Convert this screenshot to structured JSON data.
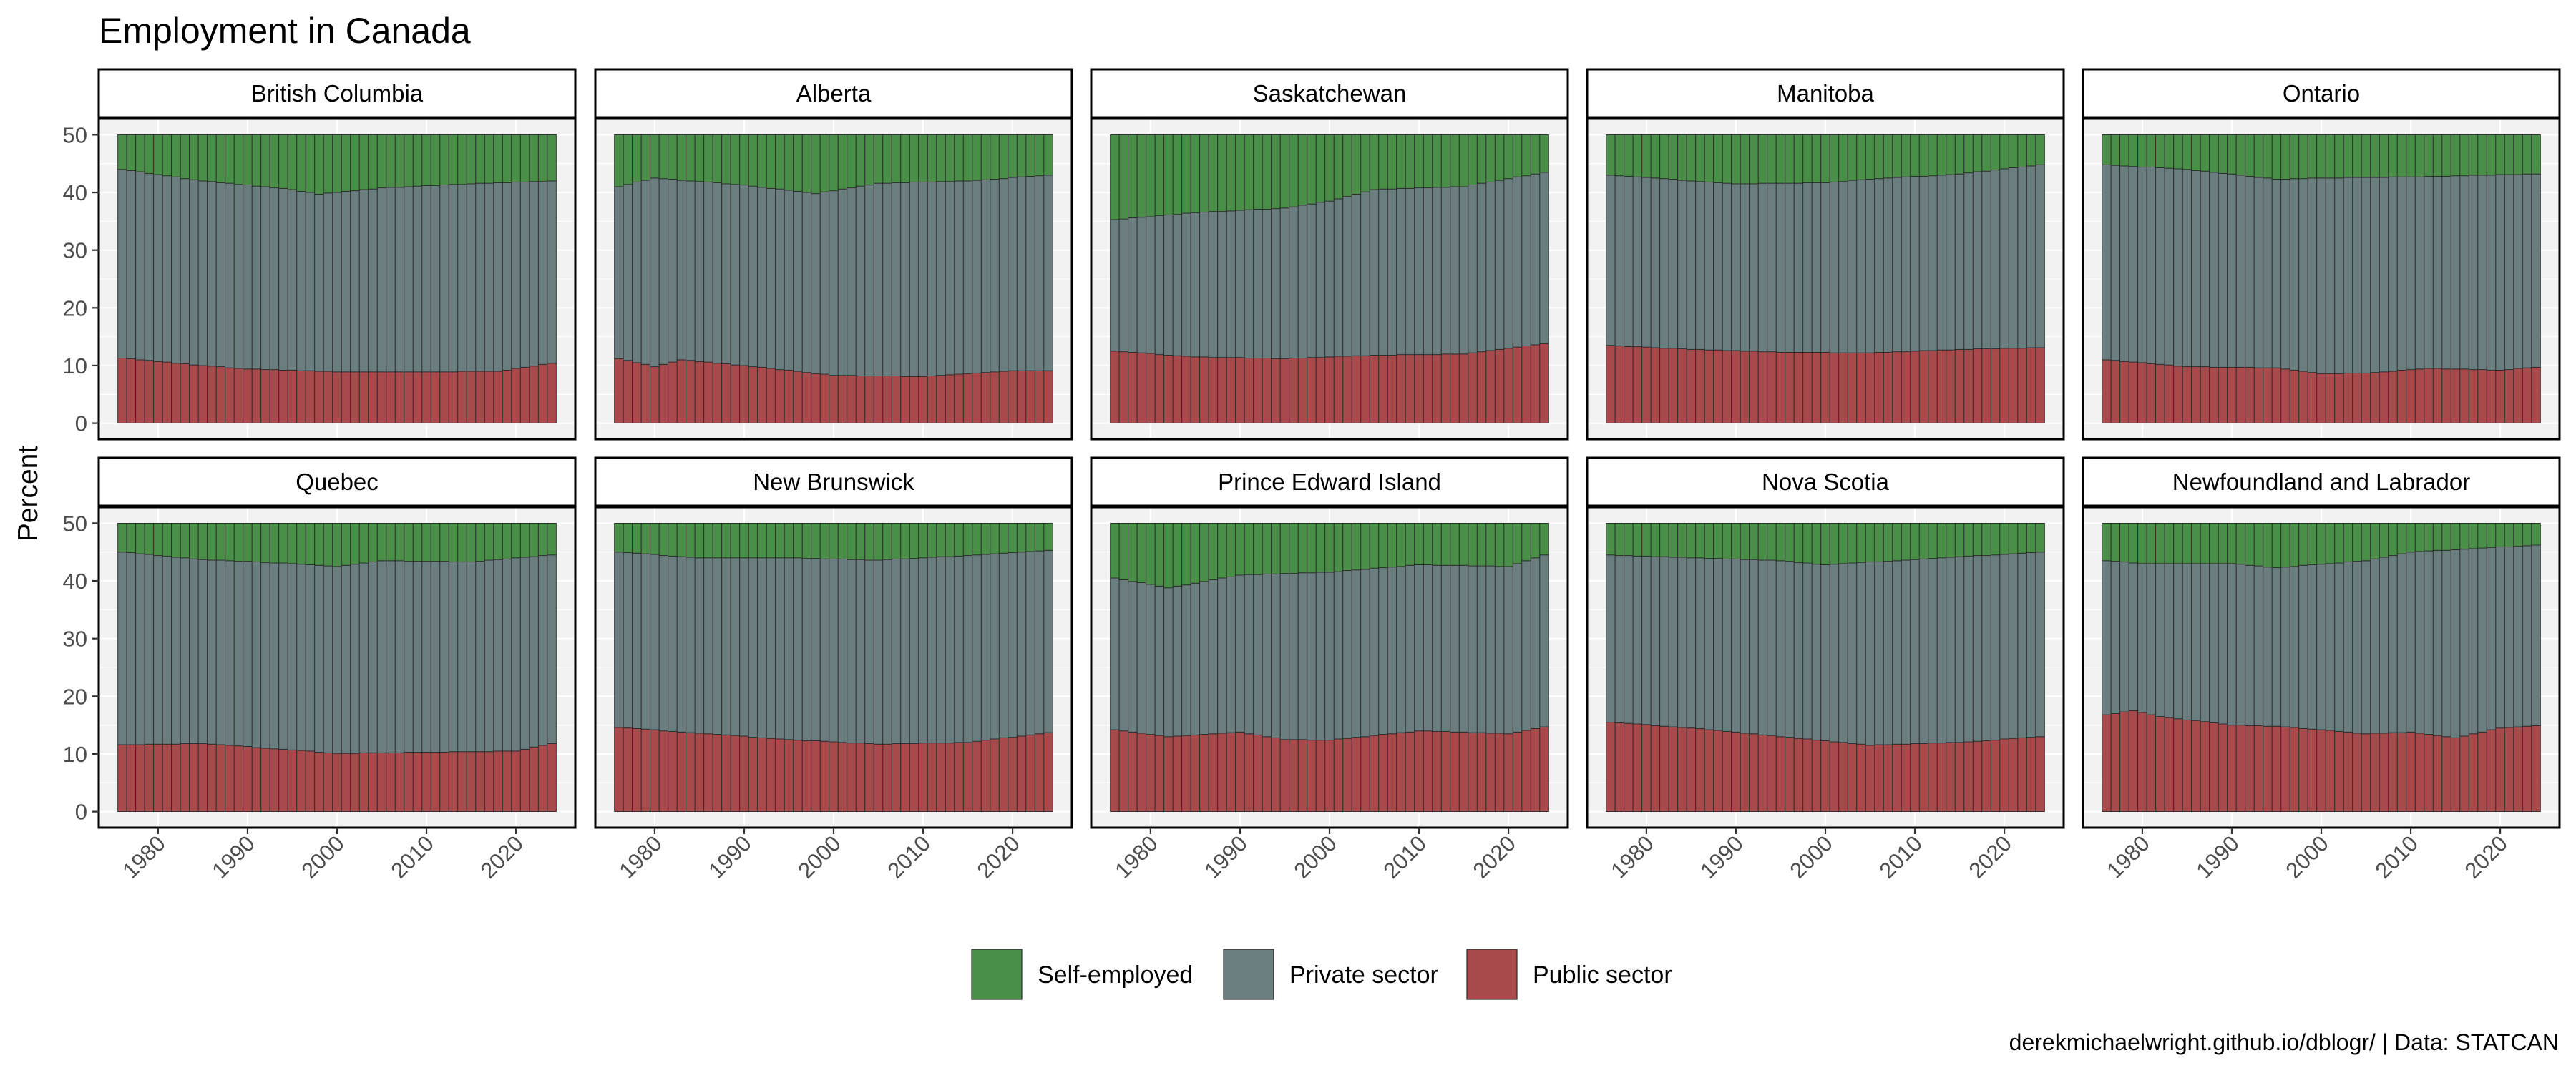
{
  "title": "Employment in Canada",
  "caption": "derekmichaelwright.github.io/dblogr/ | Data: STATCAN",
  "ylabel": "Percent",
  "colors": {
    "self_employed": "#498f47",
    "private": "#6a7d7f",
    "public": "#a84a4c",
    "panel_bg": "#f2f2f2",
    "grid": "#ffffff"
  },
  "chart_data": {
    "type": "bar",
    "stacked": true,
    "facets": "2 rows x 5 columns",
    "years": [
      1976,
      1977,
      1978,
      1979,
      1980,
      1981,
      1982,
      1983,
      1984,
      1985,
      1986,
      1987,
      1988,
      1989,
      1990,
      1991,
      1992,
      1993,
      1994,
      1995,
      1996,
      1997,
      1998,
      1999,
      2000,
      2001,
      2002,
      2003,
      2004,
      2005,
      2006,
      2007,
      2008,
      2009,
      2010,
      2011,
      2012,
      2013,
      2014,
      2015,
      2016,
      2017,
      2018,
      2019,
      2020,
      2021,
      2022,
      2023,
      2024
    ],
    "x_ticks": [
      1980,
      1990,
      2000,
      2010,
      2020
    ],
    "y_ticks": [
      0,
      10,
      20,
      30,
      40,
      50
    ],
    "ylim": [
      0,
      50
    ],
    "xlabel": "",
    "ylabel": "Percent",
    "legend": {
      "position": "bottom",
      "entries": [
        {
          "label": "Self-employed",
          "color": "#498f47"
        },
        {
          "label": "Private sector",
          "color": "#6a7d7f"
        },
        {
          "label": "Public sector",
          "color": "#a84a4c"
        }
      ]
    },
    "note": "Each bar totals 50; Public sector at bottom, Private sector stacked above, Self-employed on top.",
    "panels": [
      {
        "name": "British Columbia",
        "public_anchors": [
          [
            1976,
            11.3
          ],
          [
            1985,
            10.0
          ],
          [
            1990,
            9.4
          ],
          [
            2000,
            8.9
          ],
          [
            2010,
            8.9
          ],
          [
            2018,
            9.0
          ],
          [
            2024,
            10.4
          ]
        ],
        "top_anchors": [
          [
            1976,
            44.0
          ],
          [
            1985,
            42.0
          ],
          [
            1995,
            40.5
          ],
          [
            1998,
            39.7
          ],
          [
            2005,
            40.8
          ],
          [
            2015,
            41.5
          ],
          [
            2024,
            42.0
          ]
        ]
      },
      {
        "name": "Alberta",
        "public_anchors": [
          [
            1976,
            11.2
          ],
          [
            1980,
            9.8
          ],
          [
            1983,
            11.0
          ],
          [
            1990,
            10.0
          ],
          [
            2000,
            8.3
          ],
          [
            2010,
            8.1
          ],
          [
            2020,
            9.1
          ],
          [
            2024,
            9.1
          ]
        ],
        "top_anchors": [
          [
            1976,
            41.0
          ],
          [
            1980,
            42.5
          ],
          [
            1990,
            41.3
          ],
          [
            1998,
            39.8
          ],
          [
            2005,
            41.6
          ],
          [
            2015,
            42.0
          ],
          [
            2024,
            43.0
          ]
        ]
      },
      {
        "name": "Saskatchewan",
        "public_anchors": [
          [
            1976,
            12.5
          ],
          [
            1985,
            11.5
          ],
          [
            1995,
            11.2
          ],
          [
            2005,
            11.8
          ],
          [
            2015,
            12.0
          ],
          [
            2024,
            13.8
          ]
        ],
        "top_anchors": [
          [
            1976,
            35.3
          ],
          [
            1985,
            36.5
          ],
          [
            1995,
            37.3
          ],
          [
            2000,
            38.5
          ],
          [
            2005,
            40.5
          ],
          [
            2015,
            41.0
          ],
          [
            2024,
            43.5
          ]
        ]
      },
      {
        "name": "Manitoba",
        "public_anchors": [
          [
            1976,
            13.5
          ],
          [
            1985,
            12.8
          ],
          [
            1995,
            12.3
          ],
          [
            2005,
            12.2
          ],
          [
            2015,
            12.8
          ],
          [
            2024,
            13.1
          ]
        ],
        "top_anchors": [
          [
            1976,
            43.0
          ],
          [
            1990,
            41.5
          ],
          [
            2000,
            41.7
          ],
          [
            2005,
            42.3
          ],
          [
            2015,
            43.2
          ],
          [
            2024,
            44.8
          ]
        ]
      },
      {
        "name": "Ontario",
        "public_anchors": [
          [
            1976,
            11.0
          ],
          [
            1985,
            9.8
          ],
          [
            1995,
            9.6
          ],
          [
            2000,
            8.6
          ],
          [
            2005,
            8.7
          ],
          [
            2012,
            9.5
          ],
          [
            2020,
            9.2
          ],
          [
            2024,
            9.7
          ]
        ],
        "top_anchors": [
          [
            1976,
            44.8
          ],
          [
            1985,
            44.0
          ],
          [
            1995,
            42.3
          ],
          [
            2000,
            42.5
          ],
          [
            2010,
            42.7
          ],
          [
            2024,
            43.2
          ]
        ]
      },
      {
        "name": "Quebec",
        "public_anchors": [
          [
            1976,
            11.6
          ],
          [
            1985,
            11.8
          ],
          [
            1995,
            10.7
          ],
          [
            2000,
            10.1
          ],
          [
            2010,
            10.3
          ],
          [
            2020,
            10.5
          ],
          [
            2024,
            11.8
          ]
        ],
        "top_anchors": [
          [
            1976,
            45.0
          ],
          [
            1985,
            43.7
          ],
          [
            1995,
            43.0
          ],
          [
            2000,
            42.5
          ],
          [
            2005,
            43.5
          ],
          [
            2015,
            43.3
          ],
          [
            2024,
            44.5
          ]
        ]
      },
      {
        "name": "New Brunswick",
        "public_anchors": [
          [
            1976,
            14.6
          ],
          [
            1985,
            13.6
          ],
          [
            1995,
            12.5
          ],
          [
            2005,
            11.7
          ],
          [
            2015,
            12.0
          ],
          [
            2024,
            13.7
          ]
        ],
        "top_anchors": [
          [
            1976,
            45.0
          ],
          [
            1985,
            44.0
          ],
          [
            1995,
            44.0
          ],
          [
            2005,
            43.6
          ],
          [
            2015,
            44.4
          ],
          [
            2024,
            45.3
          ]
        ]
      },
      {
        "name": "Prince Edward Island",
        "public_anchors": [
          [
            1976,
            14.2
          ],
          [
            1982,
            13.0
          ],
          [
            1990,
            13.8
          ],
          [
            1995,
            12.5
          ],
          [
            2000,
            12.4
          ],
          [
            2010,
            14.0
          ],
          [
            2020,
            13.5
          ],
          [
            2024,
            14.7
          ]
        ],
        "top_anchors": [
          [
            1976,
            40.5
          ],
          [
            1982,
            38.8
          ],
          [
            1990,
            41.0
          ],
          [
            2000,
            41.5
          ],
          [
            2010,
            42.8
          ],
          [
            2020,
            42.5
          ],
          [
            2024,
            44.5
          ]
        ]
      },
      {
        "name": "Nova Scotia",
        "public_anchors": [
          [
            1976,
            15.5
          ],
          [
            1985,
            14.5
          ],
          [
            1995,
            13.0
          ],
          [
            2005,
            11.5
          ],
          [
            2015,
            12.0
          ],
          [
            2024,
            13.0
          ]
        ],
        "top_anchors": [
          [
            1976,
            44.5
          ],
          [
            1985,
            44.0
          ],
          [
            1995,
            43.5
          ],
          [
            2000,
            42.8
          ],
          [
            2010,
            43.7
          ],
          [
            2024,
            45.0
          ]
        ]
      },
      {
        "name": "Newfoundland and Labrador",
        "public_anchors": [
          [
            1976,
            16.8
          ],
          [
            1979,
            17.5
          ],
          [
            1982,
            16.5
          ],
          [
            1990,
            15.0
          ],
          [
            1995,
            14.8
          ],
          [
            2000,
            14.2
          ],
          [
            2005,
            13.5
          ],
          [
            2010,
            13.8
          ],
          [
            2015,
            12.8
          ],
          [
            2020,
            14.5
          ],
          [
            2024,
            14.9
          ]
        ],
        "top_anchors": [
          [
            1976,
            43.5
          ],
          [
            1980,
            43.0
          ],
          [
            1990,
            43.0
          ],
          [
            1995,
            42.3
          ],
          [
            2005,
            43.5
          ],
          [
            2010,
            45.0
          ],
          [
            2024,
            46.2
          ]
        ]
      }
    ]
  }
}
